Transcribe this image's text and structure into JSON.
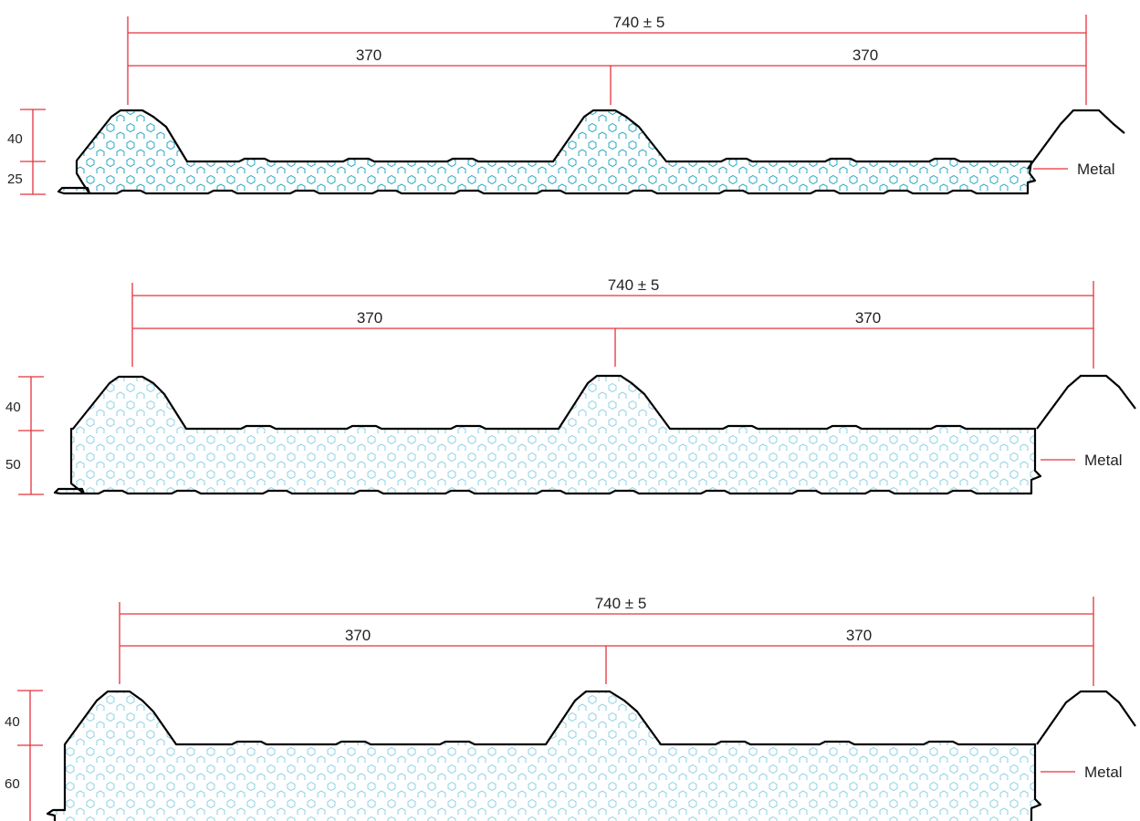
{
  "panels": [
    {
      "total_label": "740 ± 5",
      "half_left_label": "370",
      "half_right_label": "370",
      "rib_height_label": "40",
      "core_label": "25",
      "material_label": "Metal"
    },
    {
      "total_label": "740 ± 5",
      "half_left_label": "370",
      "half_right_label": "370",
      "rib_height_label": "40",
      "core_label": "50",
      "material_label": "Metal"
    },
    {
      "total_label": "740 ± 5",
      "half_left_label": "370",
      "half_right_label": "370",
      "rib_height_label": "40",
      "core_label": "60",
      "material_label": "Metal"
    }
  ],
  "colors": {
    "dimension": "#e5333b",
    "outline": "#000000",
    "foam_dense": "#29a9c3",
    "foam_light": "#8fd2e4"
  }
}
